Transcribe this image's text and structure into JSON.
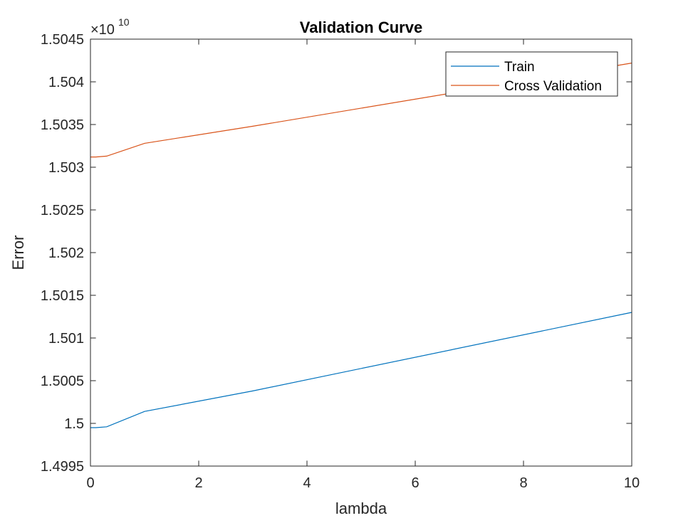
{
  "chart_data": {
    "type": "line",
    "title": "Validation Curve",
    "xlabel": "lambda",
    "ylabel": "Error",
    "y_multiplier": {
      "prefix": "×10",
      "exponent": "10"
    },
    "xlim": [
      0,
      10
    ],
    "ylim": [
      1.4995,
      1.5045
    ],
    "x_ticks": [
      0,
      2,
      4,
      6,
      8,
      10
    ],
    "x_tick_labels": [
      "0",
      "2",
      "4",
      "6",
      "8",
      "10"
    ],
    "y_ticks": [
      1.4995,
      1.5,
      1.5005,
      1.501,
      1.5015,
      1.502,
      1.5025,
      1.503,
      1.5035,
      1.504,
      1.5045
    ],
    "y_tick_labels": [
      "1.4995",
      "1.5",
      "1.5005",
      "1.501",
      "1.5015",
      "1.502",
      "1.5025",
      "1.503",
      "1.5035",
      "1.504",
      "1.5045"
    ],
    "x": [
      0,
      0.001,
      0.003,
      0.01,
      0.03,
      0.1,
      0.3,
      1,
      3,
      10
    ],
    "series": [
      {
        "name": "Train",
        "color": "#0072BD",
        "values": [
          1.49995,
          1.49995,
          1.49995,
          1.49995,
          1.49995,
          1.49995,
          1.49996,
          1.50014,
          1.50038,
          1.5013
        ]
      },
      {
        "name": "Cross Validation",
        "color": "#D95319",
        "values": [
          1.50312,
          1.50312,
          1.50312,
          1.50312,
          1.50312,
          1.50312,
          1.50313,
          1.50328,
          1.50348,
          1.50422
        ]
      }
    ],
    "legend": "top-right",
    "grid": false
  }
}
